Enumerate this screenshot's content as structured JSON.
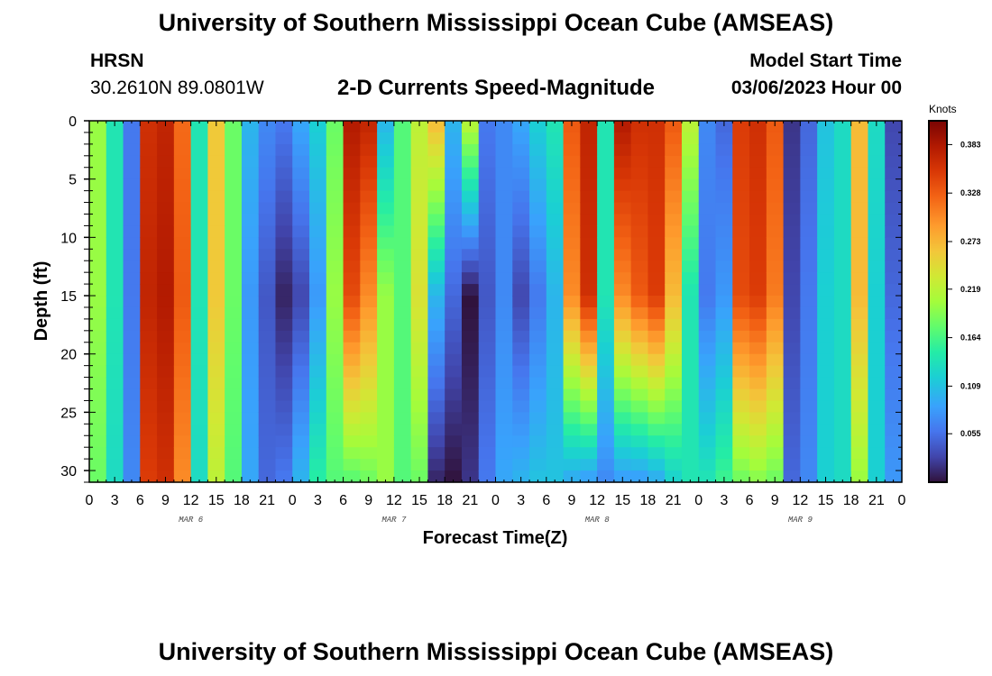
{
  "header": {
    "title": "University of Southern Mississippi Ocean Cube (AMSEAS)",
    "station": "HRSN",
    "coordinates": "30.2610N  89.0801W",
    "subtitle": "2-D Currents Speed-Magnitude",
    "model_start_label": "Model Start Time",
    "model_start_value": "03/06/2023 Hour 00"
  },
  "footer": {
    "title": "University of Southern Mississippi Ocean Cube (AMSEAS)"
  },
  "chart_data": {
    "type": "heatmap",
    "xlabel": "Forecast Time(Z)",
    "ylabel": "Depth (ft)",
    "x_unit": "hours since model start",
    "xlim": [
      0,
      96
    ],
    "ylim": [
      0,
      31
    ],
    "y_inverted": true,
    "x_tick_labels": [
      "0",
      "3",
      "6",
      "9",
      "12",
      "15",
      "18",
      "21",
      "0",
      "3",
      "6",
      "9",
      "12",
      "15",
      "18",
      "21",
      "0",
      "3",
      "6",
      "9",
      "12",
      "15",
      "18",
      "21",
      "0",
      "3",
      "6",
      "9",
      "12",
      "15",
      "18",
      "21",
      "0"
    ],
    "y_ticks": [
      0,
      5,
      10,
      15,
      20,
      25,
      30
    ],
    "date_labels": [
      {
        "text": "MAR 6",
        "x": 12
      },
      {
        "text": "MAR 7",
        "x": 36
      },
      {
        "text": "MAR 8",
        "x": 60
      },
      {
        "text": "MAR 9",
        "x": 84
      }
    ],
    "colorbar": {
      "unit": "Knots",
      "min": 0.0,
      "max": 0.41,
      "tick_values": [
        "0.383",
        "0.328",
        "0.273",
        "0.219",
        "0.164",
        "0.109",
        "0.055"
      ]
    },
    "column_speeds_knots": {
      "hours": [
        0,
        2,
        4,
        6,
        8,
        10,
        12,
        14,
        16,
        18,
        20,
        22,
        24,
        26,
        28,
        30,
        32,
        34,
        36,
        38,
        40,
        42,
        44,
        46,
        48,
        50,
        52,
        54,
        56,
        58,
        60,
        62,
        64,
        66,
        68,
        70,
        72,
        74,
        76,
        78,
        80,
        82,
        84,
        86,
        88,
        90,
        92,
        94
      ],
      "surface": [
        0.2,
        0.14,
        0.06,
        0.36,
        0.37,
        0.32,
        0.14,
        0.26,
        0.18,
        0.1,
        0.07,
        0.06,
        0.09,
        0.12,
        0.18,
        0.38,
        0.37,
        0.1,
        0.17,
        0.22,
        0.27,
        0.1,
        0.22,
        0.06,
        0.07,
        0.09,
        0.12,
        0.14,
        0.33,
        0.37,
        0.14,
        0.38,
        0.36,
        0.36,
        0.33,
        0.22,
        0.07,
        0.05,
        0.35,
        0.36,
        0.33,
        0.02,
        0.05,
        0.11,
        0.13,
        0.27,
        0.13,
        0.03
      ],
      "mid_15ft": [
        0.2,
        0.14,
        0.06,
        0.37,
        0.38,
        0.33,
        0.14,
        0.26,
        0.18,
        0.08,
        0.04,
        0.01,
        0.03,
        0.08,
        0.2,
        0.34,
        0.3,
        0.2,
        0.17,
        0.24,
        0.1,
        0.05,
        0.0,
        0.04,
        0.07,
        0.03,
        0.06,
        0.1,
        0.3,
        0.36,
        0.14,
        0.3,
        0.33,
        0.35,
        0.27,
        0.14,
        0.06,
        0.08,
        0.34,
        0.35,
        0.31,
        0.03,
        0.06,
        0.12,
        0.13,
        0.27,
        0.12,
        0.05
      ],
      "bottom": [
        0.18,
        0.13,
        0.07,
        0.35,
        0.36,
        0.3,
        0.13,
        0.22,
        0.17,
        0.09,
        0.05,
        0.06,
        0.1,
        0.15,
        0.17,
        0.17,
        0.18,
        0.2,
        0.17,
        0.18,
        0.01,
        0.0,
        0.02,
        0.06,
        0.09,
        0.1,
        0.11,
        0.11,
        0.09,
        0.08,
        0.07,
        0.08,
        0.08,
        0.09,
        0.12,
        0.14,
        0.14,
        0.16,
        0.18,
        0.19,
        0.18,
        0.05,
        0.07,
        0.12,
        0.13,
        0.2,
        0.12,
        0.08
      ]
    }
  }
}
